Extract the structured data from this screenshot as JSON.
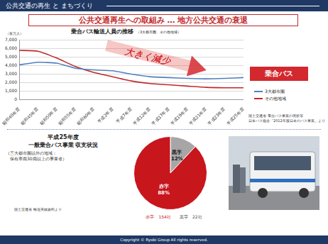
{
  "header": {
    "section": "公共交通の再生 と まちづくり",
    "title": "公共交通再生への取組み … 地方公共交通の衰退",
    "badge": "乗合バス"
  },
  "chart_data": [
    {
      "type": "line",
      "title": "乗合バス輸送人員の推移",
      "subtitle": "（3大都市圏、その他地域）",
      "y_label": "（百万人）",
      "categories": [
        "昭和40年度",
        "昭和45年度",
        "昭和50年度",
        "昭和55年度",
        "昭和60年度",
        "平成2年度",
        "平成7年度",
        "平成12年度",
        "平成17年度",
        "平成19年度",
        "平成21年度",
        "平成23年度",
        "平成25年度"
      ],
      "series": [
        {
          "name": "3大都市圏",
          "color": "#4f81bd",
          "values": [
            4100,
            4400,
            4300,
            3700,
            3500,
            3400,
            3000,
            2700,
            2600,
            2500,
            2450,
            2500,
            2600
          ]
        },
        {
          "name": "その他地域",
          "color": "#c0282a",
          "values": [
            5800,
            5700,
            4900,
            3900,
            3200,
            2700,
            2200,
            1900,
            1750,
            1600,
            1450,
            1400,
            1400
          ]
        }
      ],
      "ylim": [
        0,
        7000
      ],
      "yticks": [
        0,
        {
          "value": 1000,
          "label": "1,000"
        },
        {
          "value": 2000,
          "label": "2,000"
        },
        {
          "value": 3000,
          "label": "3,000"
        },
        {
          "value": 4000,
          "label": "4,000"
        },
        {
          "value": 5000,
          "label": "5,000"
        },
        {
          "value": 6000,
          "label": "6,000"
        },
        {
          "value": 7000,
          "label": "7,000"
        }
      ],
      "grid": true,
      "legend": "right",
      "annotation": "大きく減少",
      "source": [
        "国土交通省 乗合バス事業の現状等",
        "日本バス協会「2012年版日本のバス事業」より"
      ]
    },
    {
      "type": "pie",
      "title": [
        "平成25年度",
        "一般乗合バス事業 収支状況"
      ],
      "subtitle": [
        "（三大都市圏以外の地域：",
        "保有車両30両以上の事業者）"
      ],
      "categories": [
        "黒字",
        "赤字"
      ],
      "values": [
        12,
        88
      ],
      "value_labels": [
        "12%",
        "88%"
      ],
      "colors": [
        "#a6a6a6",
        "#c8161d"
      ],
      "data_labels": true,
      "counts": [
        {
          "label": "赤字",
          "text": "154社"
        },
        {
          "label": "黒字",
          "text": "22社"
        }
      ],
      "source": "国土交通省 輸送実績資料より"
    }
  ],
  "footer": "Copyright © Ryobi Group All rights reserved."
}
